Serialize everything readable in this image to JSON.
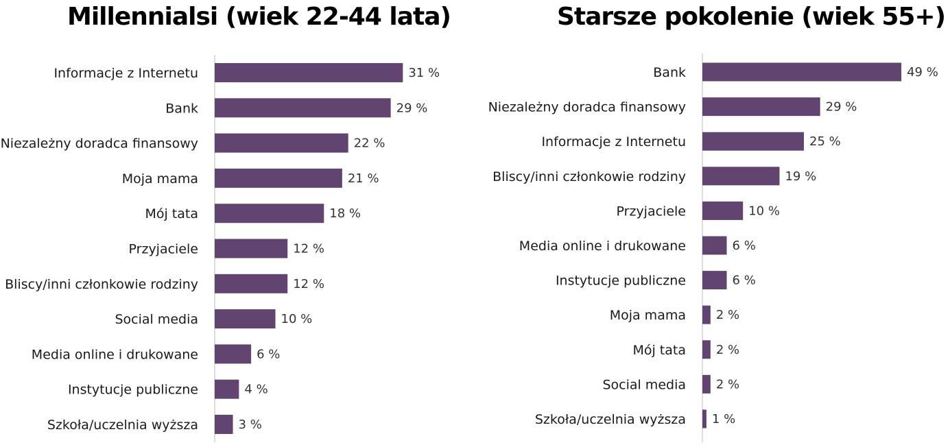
{
  "colors": {
    "bar": "#614470",
    "axis": "#d0d0d0"
  },
  "chart_data": [
    {
      "type": "bar",
      "orientation": "horizontal",
      "title": "Millennialsi (wiek 22-44 lata)",
      "categories": [
        "Informacje z Internetu",
        "Bank",
        "Niezależny doradca finansowy",
        "Moja mama",
        "Mój tata",
        "Przyjaciele",
        "Bliscy/inni członkowie rodziny",
        "Social media",
        "Media online i drukowane",
        "Instytucje publiczne",
        "Szkoła/uczelnia wyższa"
      ],
      "values": [
        31,
        29,
        22,
        21,
        18,
        12,
        12,
        10,
        6,
        4,
        3
      ],
      "value_labels": [
        "31 %",
        "29 %",
        "22 %",
        "21 %",
        "18 %",
        "12 %",
        "12 %",
        "10 %",
        "6 %",
        "4 %",
        "3 %"
      ],
      "unit": "%",
      "grid": false,
      "legend": "none"
    },
    {
      "type": "bar",
      "orientation": "horizontal",
      "title": "Starsze pokolenie (wiek 55+)",
      "categories": [
        "Bank",
        "Niezależny doradca finansowy",
        "Informacje z Internetu",
        "Bliscy/inni członkowie rodziny",
        "Przyjaciele",
        "Media online i drukowane",
        "Instytucje publiczne",
        "Moja mama",
        "Mój tata",
        "Social media",
        "Szkoła/uczelnia wyższa"
      ],
      "values": [
        49,
        29,
        25,
        19,
        10,
        6,
        6,
        2,
        2,
        2,
        1
      ],
      "value_labels": [
        "49 %",
        "29 %",
        "25 %",
        "19 %",
        "10 %",
        "6 %",
        "6 %",
        "2 %",
        "2 %",
        "2 %",
        "1 %"
      ],
      "unit": "%",
      "grid": false,
      "legend": "none"
    }
  ]
}
